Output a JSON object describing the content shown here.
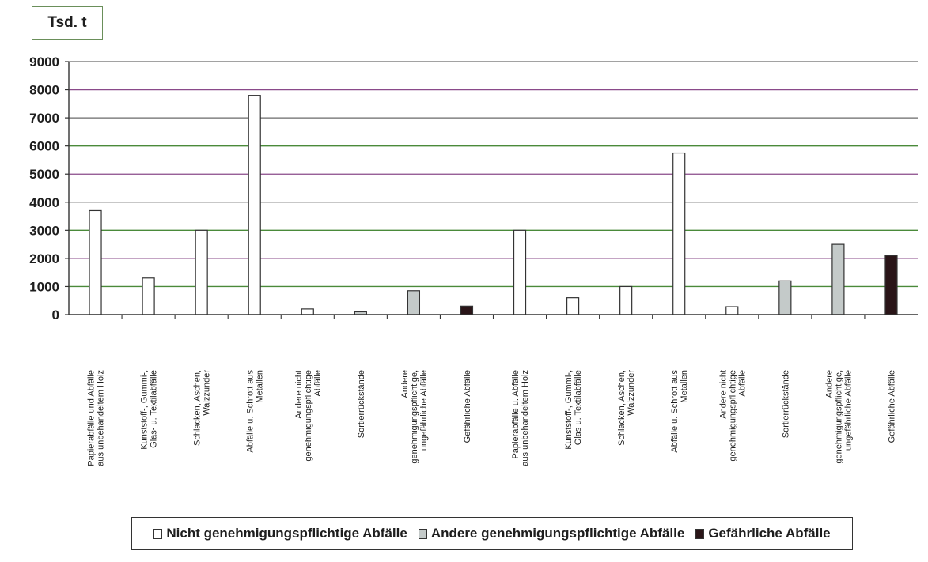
{
  "chart_data": {
    "type": "bar",
    "unit_label": "Tsd. t",
    "ylim": [
      0,
      9000
    ],
    "yticks": [
      0,
      1000,
      2000,
      3000,
      4000,
      5000,
      6000,
      7000,
      8000,
      9000
    ],
    "grid": true,
    "legend_position": "bottom",
    "categories": [
      [
        "Papierabfälle und Abfälle",
        "aus unbehandeltem Holz"
      ],
      [
        "Kunststoff-, Gummi-,",
        "Glas- u. Textilabfälle"
      ],
      [
        "Schlacken, Aschen,",
        "Walzzunder"
      ],
      [
        "Abfälle u. Schrott aus",
        "Metallen"
      ],
      [
        "Andere nicht",
        "genehmigungspflichtige",
        "Abfälle"
      ],
      [
        "Sortierrückstände"
      ],
      [
        "Andere",
        "genehmigungspflichtige,",
        "ungefährliche Abfälle"
      ],
      [
        "Gefährliche Abfälle"
      ],
      [
        "Papierabfälle u. Abfälle",
        "aus unbehandeltem Holz"
      ],
      [
        "Kunststoff-, Gummi-,",
        "Glas u. Textilabfälle"
      ],
      [
        "Schlacken, Aschen,",
        "Walzzunder"
      ],
      [
        "Abfälle u. Schrott aus",
        "Metallen"
      ],
      [
        "Andere nicht",
        "genehmigungspflichtige",
        "Abfälle"
      ],
      [
        "Sortierrückstände"
      ],
      [
        "Andere",
        "genehmigungspflichtige,",
        "ungefährliche Abfälle"
      ],
      [
        "Gefährliche Abfälle"
      ]
    ],
    "values": [
      3700,
      1300,
      3000,
      7800,
      200,
      100,
      850,
      300,
      3000,
      600,
      1000,
      5750,
      280,
      1200,
      2500,
      2100
    ],
    "bar_series": [
      0,
      0,
      0,
      0,
      0,
      1,
      1,
      2,
      0,
      0,
      0,
      0,
      0,
      1,
      1,
      2
    ],
    "series": [
      {
        "name": "Nicht genehmigungspflichtige Abfälle",
        "color": "#ffffff"
      },
      {
        "name": "Andere genehmigungspflichtige Abfälle",
        "color": "#c4cac9"
      },
      {
        "name": "Gefährliche Abfälle",
        "color": "#2a1518"
      }
    ]
  }
}
